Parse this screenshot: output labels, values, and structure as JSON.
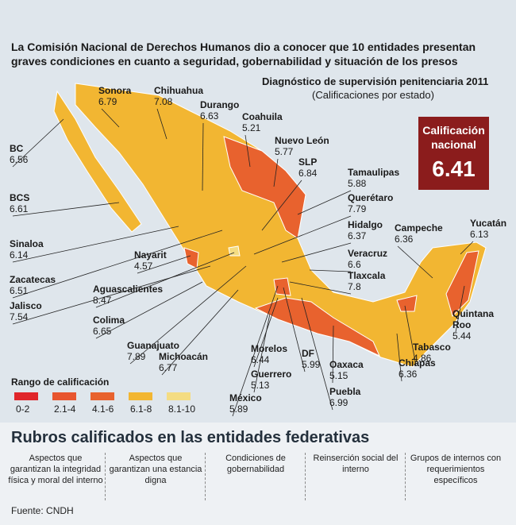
{
  "header": {
    "title": "La Comisión Nacional de Derechos Humanos dio a conocer que 10 entidades presentan graves condiciones en cuanto a seguridad, gobernabilidad y situación de los presos",
    "subtitle": "Diagnóstico de supervisión penitenciaria 2011",
    "note": "(Calificaciones por estado)"
  },
  "national": {
    "label": "Calificación nacional",
    "value": 6.41
  },
  "states": [
    {
      "name": "Sonora",
      "score": 6.79
    },
    {
      "name": "Chihuahua",
      "score": 7.08
    },
    {
      "name": "Durango",
      "score": 6.63
    },
    {
      "name": "Coahuila",
      "score": 5.21
    },
    {
      "name": "Nuevo León",
      "score": 5.77
    },
    {
      "name": "SLP",
      "score": 6.84
    },
    {
      "name": "Tamaulipas",
      "score": 5.88
    },
    {
      "name": "Querétaro",
      "score": 7.79
    },
    {
      "name": "Hidalgo",
      "score": 6.37
    },
    {
      "name": "Veracruz",
      "score": 6.6
    },
    {
      "name": "Tlaxcala",
      "score": 7.8
    },
    {
      "name": "BC",
      "score": 6.56
    },
    {
      "name": "BCS",
      "score": 6.61
    },
    {
      "name": "Sinaloa",
      "score": 6.14
    },
    {
      "name": "Nayarit",
      "score": 4.57
    },
    {
      "name": "Zacatecas",
      "score": 6.51
    },
    {
      "name": "Aguascalientes",
      "score": 8.47
    },
    {
      "name": "Jalisco",
      "score": 7.54
    },
    {
      "name": "Colima",
      "score": 6.65
    },
    {
      "name": "Guanajuato",
      "score": 7.89
    },
    {
      "name": "Michoacán",
      "score": 6.77
    },
    {
      "name": "México",
      "score": 5.89
    },
    {
      "name": "Guerrero",
      "score": 5.13
    },
    {
      "name": "Morelos",
      "score": 6.44
    },
    {
      "name": "DF",
      "score": 5.99
    },
    {
      "name": "Oaxaca",
      "score": 5.15
    },
    {
      "name": "Puebla",
      "score": 6.99
    },
    {
      "name": "Chiapas",
      "score": 6.36
    },
    {
      "name": "Tabasco",
      "score": 4.86
    },
    {
      "name": "Quintana Roo",
      "score": 5.44
    },
    {
      "name": "Campeche",
      "score": 6.36
    },
    {
      "name": "Yucatán",
      "score": 6.13
    }
  ],
  "legend": {
    "title": "Rango de calificación",
    "items": [
      {
        "label": "0-2",
        "color": "#e0262b"
      },
      {
        "label": "2.1-4",
        "color": "#e8552f"
      },
      {
        "label": "4.1-6",
        "color": "#e8622e"
      },
      {
        "label": "6.1-8",
        "color": "#f2b632"
      },
      {
        "label": "8.1-10",
        "color": "#f4dc82"
      }
    ]
  },
  "section": {
    "title": "Rubros calificados en las entidades federativas",
    "items": [
      "Aspectos que garantizan la integridad física y moral del interno",
      "Aspectos que garantizan una estancia digna",
      "Condiciones de gobernabilidad",
      "Reinserción social del interno",
      "Grupos de internos con requerimientos específicos"
    ]
  },
  "source": "Fuente: CNDH"
}
